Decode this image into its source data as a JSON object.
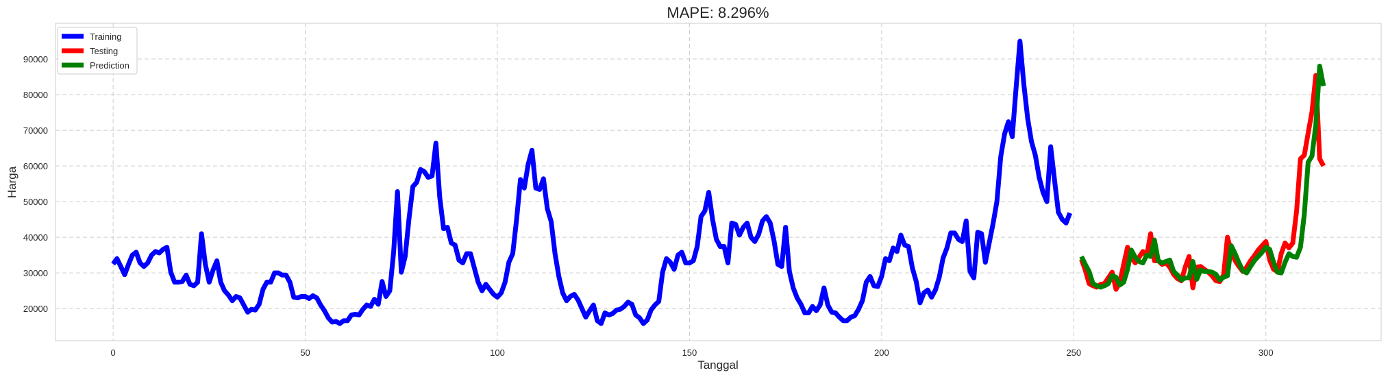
{
  "chart_data": {
    "type": "line",
    "title": "MAPE: 8.296%",
    "xlabel": "Tanggal",
    "ylabel": "Harga",
    "xlim": [
      -15,
      330
    ],
    "ylim": [
      11000,
      100000
    ],
    "xticks": [
      0,
      50,
      100,
      150,
      200,
      250,
      300
    ],
    "yticks": [
      20000,
      30000,
      40000,
      50000,
      60000,
      70000,
      80000,
      90000
    ],
    "grid": true,
    "legend_position": "top-left",
    "series": [
      {
        "name": "Training",
        "color": "#0000ff",
        "x_start": 0,
        "values": [
          32500,
          34000,
          31800,
          29500,
          32400,
          35000,
          35800,
          32800,
          31800,
          32800,
          35000,
          36000,
          35600,
          36600,
          37200,
          30200,
          27400,
          27400,
          27600,
          29400,
          26800,
          26400,
          27400,
          41000,
          32400,
          27400,
          30800,
          33400,
          27400,
          25000,
          23800,
          22200,
          23400,
          23000,
          21000,
          19000,
          19800,
          19600,
          21200,
          25400,
          27400,
          27400,
          30000,
          30000,
          29400,
          29400,
          27400,
          23200,
          23000,
          23400,
          23400,
          22800,
          23600,
          23000,
          21000,
          19400,
          17400,
          16200,
          16400,
          15800,
          16600,
          16600,
          18200,
          18400,
          18200,
          19800,
          21000,
          20600,
          22600,
          21200,
          27600,
          23400,
          25000,
          35800,
          52800,
          30200,
          34600,
          45200,
          54200,
          55400,
          59000,
          58400,
          56800,
          57200,
          66400,
          51200,
          42400,
          42800,
          38400,
          37800,
          33600,
          32800,
          35400,
          35400,
          31400,
          27400,
          25000,
          26800,
          25400,
          24000,
          23200,
          24400,
          27400,
          33000,
          35400,
          45000,
          56200,
          53800,
          60400,
          64400,
          53800,
          53400,
          56400,
          48000,
          44400,
          35400,
          29000,
          24400,
          22200,
          23400,
          24000,
          22400,
          20000,
          17600,
          19400,
          21000,
          16600,
          15800,
          18800,
          18200,
          18600,
          19600,
          19800,
          20600,
          21800,
          21200,
          18200,
          17400,
          15800,
          16800,
          19600,
          21000,
          22000,
          30200,
          34000,
          33000,
          31000,
          35000,
          35800,
          32800,
          32800,
          33400,
          37400,
          45800,
          47400,
          52600,
          45000,
          39400,
          37400,
          37400,
          32800,
          44000,
          43600,
          40600,
          42800,
          44000,
          40000,
          38800,
          40800,
          44600,
          45800,
          44000,
          39000,
          32400,
          31800,
          42800,
          30400,
          25800,
          23000,
          21200,
          18800,
          18800,
          20600,
          19400,
          21000,
          25800,
          21000,
          19000,
          18800,
          17600,
          16600,
          16600,
          17600,
          18000,
          19800,
          22200,
          27400,
          29000,
          26400,
          26200,
          29000,
          34000,
          33400,
          37000,
          36000,
          40600,
          37800,
          37400,
          31400,
          27600,
          21600,
          24400,
          25200,
          23200,
          25200,
          28800,
          34200,
          37000,
          41200,
          41200,
          39400,
          38800,
          44600,
          30400,
          28600,
          41400,
          41000,
          33000,
          38400,
          43800,
          50000,
          62600,
          69000,
          72400,
          68200,
          82000,
          95000,
          83000,
          73400,
          66800,
          63000,
          56800,
          52600,
          50000,
          65400,
          56000,
          47000,
          45000,
          44000,
          46800
        ]
      },
      {
        "name": "Testing",
        "color": "#ff0000",
        "x_start": 252,
        "values": [
          33800,
          30800,
          27000,
          26400,
          26000,
          26800,
          27000,
          28600,
          30200,
          25400,
          27400,
          32400,
          37200,
          34400,
          32800,
          34400,
          36000,
          34800,
          41000,
          33400,
          33400,
          32400,
          32800,
          31600,
          29600,
          28400,
          27800,
          31600,
          34600,
          25800,
          31600,
          31800,
          31000,
          30200,
          29200,
          27800,
          27600,
          29400,
          40000,
          36000,
          33400,
          31800,
          30400,
          31600,
          33400,
          34800,
          36400,
          37600,
          38800,
          33600,
          31000,
          30400,
          35400,
          38400,
          37000,
          38400,
          47400,
          62000,
          63000,
          69200,
          75200,
          85400,
          62000,
          60000
        ]
      },
      {
        "name": "Prediction",
        "color": "#008000",
        "x_start": 252,
        "values": [
          34600,
          32400,
          30400,
          27000,
          26400,
          26000,
          26400,
          27000,
          29200,
          28800,
          26600,
          27400,
          31000,
          36400,
          34400,
          33200,
          32800,
          35000,
          34600,
          39200,
          33400,
          32800,
          33200,
          33600,
          30400,
          29400,
          28000,
          28600,
          28600,
          33200,
          28200,
          30800,
          30400,
          30400,
          30200,
          29600,
          28000,
          28800,
          29200,
          37600,
          35400,
          32800,
          30600,
          30000,
          31800,
          33400,
          34600,
          35800,
          37200,
          36600,
          33000,
          30200,
          30000,
          33000,
          35400,
          34600,
          34400,
          37200,
          46400,
          61000,
          62800,
          71600,
          88000,
          82400
        ]
      }
    ]
  }
}
